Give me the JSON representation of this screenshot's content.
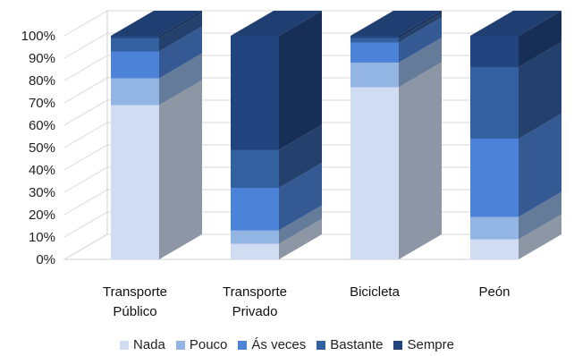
{
  "chart_data": {
    "type": "bar",
    "stacked": true,
    "percent": true,
    "three_d": true,
    "categories": [
      "Transporte\nPúblico",
      "Transporte\nPrivado",
      "Bicicleta",
      "Peón"
    ],
    "series": [
      {
        "name": "Nada",
        "values": [
          69,
          7,
          77,
          9
        ],
        "color": "#cfdcf2"
      },
      {
        "name": "Pouco",
        "values": [
          12,
          6,
          11,
          10
        ],
        "color": "#93b5e3"
      },
      {
        "name": "Ás veces",
        "values": [
          12,
          19,
          9,
          35
        ],
        "color": "#4c83d8"
      },
      {
        "name": "Bastante",
        "values": [
          6,
          17,
          2,
          32
        ],
        "color": "#33609f"
      },
      {
        "name": "Sempre",
        "values": [
          1,
          51,
          1,
          14
        ],
        "color": "#22457f"
      }
    ],
    "y_ticks": [
      "0%",
      "10%",
      "20%",
      "30%",
      "40%",
      "50%",
      "60%",
      "70%",
      "80%",
      "90%",
      "100%"
    ],
    "ylim": [
      0,
      100
    ],
    "grid": true,
    "legend_position": "bottom",
    "title": "",
    "xlabel": "",
    "ylabel": ""
  }
}
